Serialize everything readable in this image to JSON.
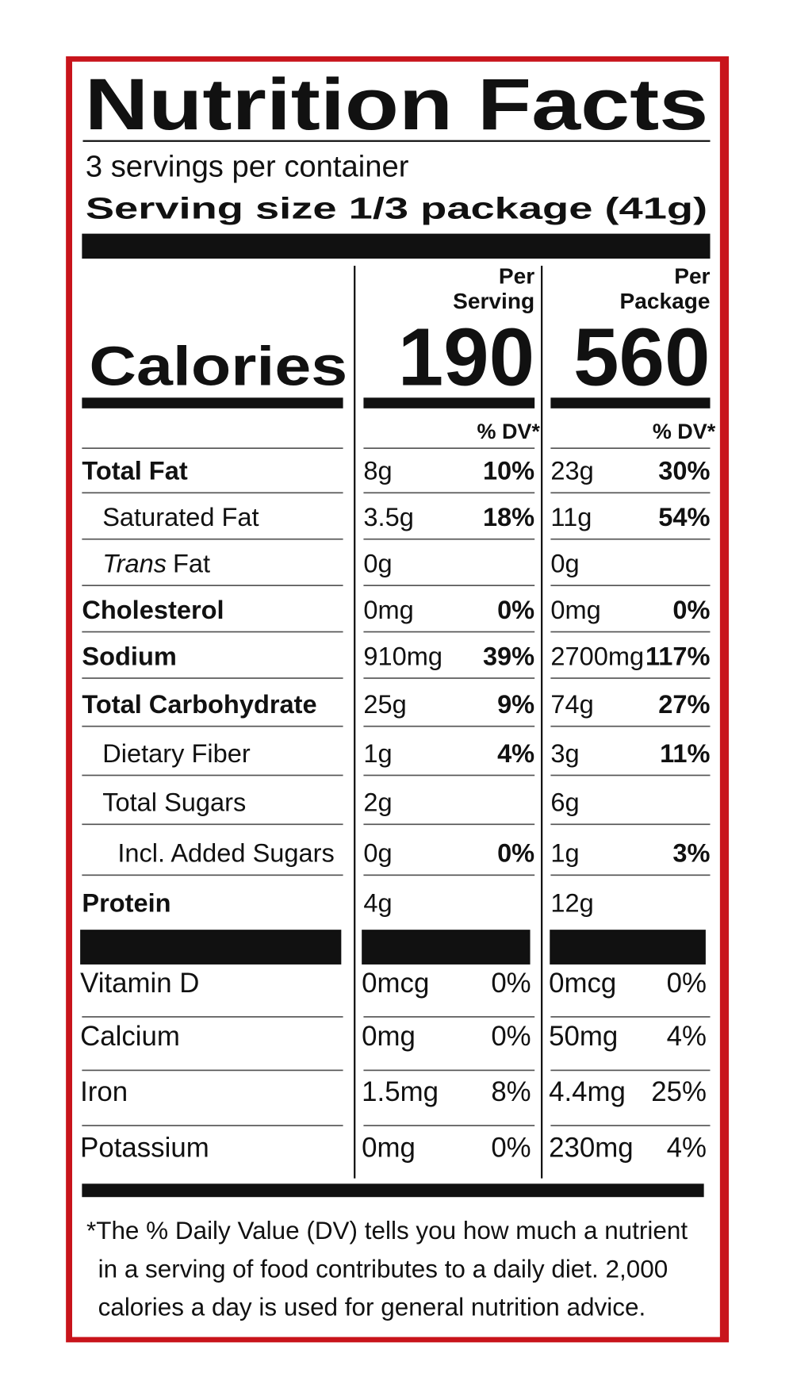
{
  "header": {
    "title": "Nutrition Facts",
    "servings": "3 servings per container",
    "serving_size": "Serving size 1/3 package (41g)"
  },
  "calories": {
    "label": "Calories",
    "columns": [
      {
        "heading": [
          "Per",
          "Serving"
        ],
        "value": "190",
        "dv_heading": "% DV*"
      },
      {
        "heading": [
          "Per",
          "Package"
        ],
        "value": "560",
        "dv_heading": "% DV*"
      }
    ]
  },
  "nutrients": [
    {
      "name": "Total Fat",
      "bold": true,
      "indent": 0,
      "values": [
        [
          "8g",
          "10%"
        ],
        [
          "23g",
          "30%"
        ]
      ]
    },
    {
      "name": "Saturated Fat",
      "bold": false,
      "indent": 1,
      "values": [
        [
          "3.5g",
          "18%"
        ],
        [
          "11g",
          "54%"
        ]
      ]
    },
    {
      "name_italic": "Trans",
      "name": "Fat",
      "bold": false,
      "indent": 1,
      "values": [
        [
          "0g"
        ],
        [
          "0g"
        ]
      ]
    },
    {
      "name": "Cholesterol",
      "bold": true,
      "indent": 0,
      "values": [
        [
          "0mg",
          "0%"
        ],
        [
          "0mg",
          "0%"
        ]
      ]
    },
    {
      "name": "Sodium",
      "bold": true,
      "indent": 0,
      "values": [
        [
          "910mg",
          "39%"
        ],
        [
          "2700mg",
          "117%"
        ]
      ]
    },
    {
      "name": "Total Carbohydrate",
      "bold": true,
      "indent": 0,
      "values": [
        [
          "25g",
          "9%"
        ],
        [
          "74g",
          "27%"
        ]
      ]
    },
    {
      "name": "Dietary Fiber",
      "bold": false,
      "indent": 1,
      "values": [
        [
          "1g",
          "4%"
        ],
        [
          "3g",
          "11%"
        ]
      ]
    },
    {
      "name": "Total Sugars",
      "bold": false,
      "indent": 1,
      "values": [
        [
          "2g"
        ],
        [
          "6g"
        ]
      ]
    },
    {
      "name": "Incl. Added Sugars",
      "bold": false,
      "indent": 2,
      "values": [
        [
          "0g",
          "0%"
        ],
        [
          "1g",
          "3%"
        ]
      ]
    },
    {
      "name": "Protein",
      "bold": true,
      "indent": 0,
      "values": [
        [
          "4g"
        ],
        [
          "12g"
        ]
      ]
    }
  ],
  "vitamins": [
    {
      "name": "Vitamin D",
      "values": [
        [
          "0mcg",
          "0%"
        ],
        [
          "0mcg",
          "0%"
        ]
      ]
    },
    {
      "name": "Calcium",
      "values": [
        [
          "0mg",
          "0%"
        ],
        [
          "50mg",
          "4%"
        ]
      ]
    },
    {
      "name": "Iron",
      "values": [
        [
          "1.5mg",
          "8%"
        ],
        [
          "4.4mg",
          "25%"
        ]
      ]
    },
    {
      "name": "Potassium",
      "values": [
        [
          "0mg",
          "0%"
        ],
        [
          "230mg",
          "4%"
        ]
      ]
    }
  ],
  "footnote": [
    "*The % Daily Value (DV) tells you how much a nutrient",
    "in a serving of food contributes to a daily diet. 2,000",
    "calories a day is used for general nutrition advice."
  ]
}
